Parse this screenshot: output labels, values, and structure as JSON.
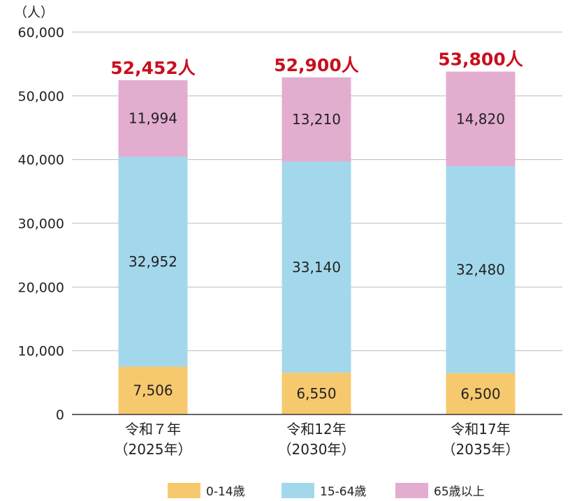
{
  "chart_data": {
    "type": "bar",
    "stacked": true,
    "unit_label": "（人）",
    "y_ticks": [
      "0",
      "10,000",
      "20,000",
      "30,000",
      "40,000",
      "50,000",
      "60,000"
    ],
    "ylim": [
      0,
      60000
    ],
    "grid": true,
    "categories": [
      {
        "line1": "令和７年",
        "line2": "（2025年）"
      },
      {
        "line1": "令和12年",
        "line2": "（2030年）"
      },
      {
        "line1": "令和17年",
        "line2": "（2035年）"
      }
    ],
    "series": [
      {
        "name": "0-14歳",
        "color": "#f7c96e",
        "values": [
          7506,
          6550,
          6500
        ],
        "labels": [
          "7,506",
          "6,550",
          "6,500"
        ]
      },
      {
        "name": "15-64歳",
        "color": "#a3d8ec",
        "values": [
          32952,
          33140,
          32480
        ],
        "labels": [
          "32,952",
          "33,140",
          "32,480"
        ]
      },
      {
        "name": "65歳以上",
        "color": "#e3add0",
        "values": [
          11994,
          13210,
          14820
        ],
        "labels": [
          "11,994",
          "13,210",
          "14,820"
        ]
      }
    ],
    "totals": [
      52452,
      52900,
      53800
    ],
    "total_labels": [
      "52,452人",
      "52,900人",
      "53,800人"
    ],
    "total_color": "#c8101e",
    "legend_position": "bottom"
  }
}
